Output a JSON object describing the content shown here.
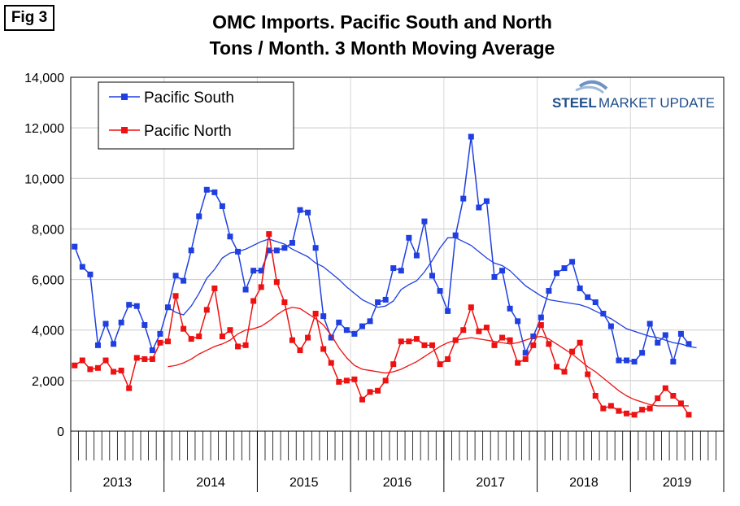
{
  "figure_label": "Fig 3",
  "logo": {
    "word1": "STEEL",
    "word2": "MARKET UPDATE"
  },
  "colors": {
    "south": "#1f3fe0",
    "north": "#ee1111",
    "grid": "#c8c8c8"
  },
  "chart_data": {
    "type": "line",
    "title": "OMC Imports. Pacific South and North",
    "subtitle": "Tons / Month. 3 Month Moving Average",
    "xlabel": "",
    "ylabel": "",
    "ylim": [
      0,
      14000
    ],
    "yticks": [
      0,
      2000,
      4000,
      6000,
      8000,
      10000,
      12000,
      14000
    ],
    "ytick_labels": [
      "0",
      "2,000",
      "4,000",
      "6,000",
      "8,000",
      "10,000",
      "12,000",
      "14,000"
    ],
    "x_start": "2013-01",
    "months": 84,
    "year_labels": [
      "2013",
      "2014",
      "2015",
      "2016",
      "2017",
      "2018",
      "2019"
    ],
    "grid": true,
    "legend_position": "top-left",
    "series": [
      {
        "name": "Pacific South",
        "style": "line-marker",
        "values": [
          7300,
          6500,
          6200,
          3400,
          4250,
          3450,
          4300,
          5000,
          4950,
          4200,
          3200,
          3850,
          4900,
          6150,
          5950,
          7150,
          8500,
          9550,
          9450,
          8900,
          7700,
          7100,
          5600,
          6350,
          6350,
          7150,
          7150,
          7250,
          7450,
          8750,
          8650,
          7250,
          4550,
          3700,
          4300,
          4000,
          3850,
          4150,
          4350,
          5100,
          5200,
          6450,
          6350,
          7650,
          6950,
          8300,
          6150,
          5550,
          4750,
          7750,
          9200,
          11650,
          8850,
          9100,
          6100,
          6350,
          4850,
          4350,
          3100,
          3750,
          4500,
          5550,
          6250,
          6450,
          6700,
          5650,
          5300,
          5100,
          4650,
          4150,
          2800,
          2800,
          2750,
          3100,
          4250,
          3500,
          3800,
          2750,
          3850,
          3450,
          null,
          null,
          null,
          null
        ]
      },
      {
        "name": "Pacific North",
        "style": "line-marker",
        "values": [
          2600,
          2800,
          2450,
          2500,
          2800,
          2350,
          2400,
          1700,
          2900,
          2850,
          2850,
          3500,
          3550,
          5350,
          4050,
          3650,
          3750,
          4800,
          5650,
          3750,
          4000,
          3350,
          3400,
          5150,
          5700,
          7800,
          5900,
          5100,
          3600,
          3200,
          3700,
          4650,
          3250,
          2700,
          1950,
          2000,
          2050,
          1250,
          1550,
          1600,
          2000,
          2650,
          3550,
          3550,
          3650,
          3400,
          3400,
          2650,
          2850,
          3600,
          4000,
          4900,
          3950,
          4100,
          3400,
          3700,
          3600,
          2700,
          2850,
          3400,
          4200,
          3450,
          2550,
          2350,
          3150,
          3500,
          2250,
          1400,
          900,
          1000,
          800,
          700,
          650,
          850,
          900,
          1300,
          1700,
          1400,
          1100,
          650,
          null,
          null,
          null,
          null
        ]
      },
      {
        "name": "",
        "style": "line",
        "values": [
          null,
          null,
          null,
          null,
          null,
          null,
          null,
          null,
          null,
          null,
          null,
          null,
          4900,
          4700,
          4600,
          4950,
          5450,
          6050,
          6400,
          6850,
          7050,
          7100,
          7200,
          7350,
          7500,
          7600,
          7500,
          7400,
          7200,
          7050,
          6900,
          6650,
          6500,
          6250,
          6000,
          5700,
          5450,
          5200,
          5050,
          4900,
          4950,
          5150,
          5600,
          5800,
          5950,
          6300,
          6750,
          7250,
          7650,
          7650,
          7500,
          7350,
          7100,
          6850,
          6650,
          6550,
          6350,
          6050,
          5750,
          5550,
          5350,
          5200,
          5150,
          5100,
          5050,
          5000,
          4900,
          4750,
          4600,
          4450,
          4250,
          4050,
          3950,
          3850,
          3750,
          3700,
          3600,
          3500,
          3450,
          3350,
          3300,
          null,
          null,
          null
        ]
      },
      {
        "name": "",
        "style": "line",
        "values": [
          null,
          null,
          null,
          null,
          null,
          null,
          null,
          null,
          null,
          null,
          null,
          null,
          2550,
          2600,
          2700,
          2850,
          3050,
          3200,
          3350,
          3450,
          3600,
          3850,
          4000,
          4050,
          4150,
          4350,
          4600,
          4800,
          4900,
          4850,
          4650,
          4450,
          4200,
          3800,
          3300,
          2900,
          2600,
          2450,
          2400,
          2350,
          2300,
          2350,
          2450,
          2600,
          2750,
          2950,
          3150,
          3350,
          3500,
          3600,
          3650,
          3700,
          3650,
          3600,
          3550,
          3500,
          3450,
          3500,
          3600,
          3700,
          3750,
          3650,
          3450,
          3250,
          3050,
          2800,
          2550,
          2350,
          2100,
          1850,
          1600,
          1400,
          1250,
          1150,
          1050,
          1000,
          1000,
          1000,
          1000,
          1000,
          null,
          null,
          null,
          null
        ]
      }
    ]
  }
}
